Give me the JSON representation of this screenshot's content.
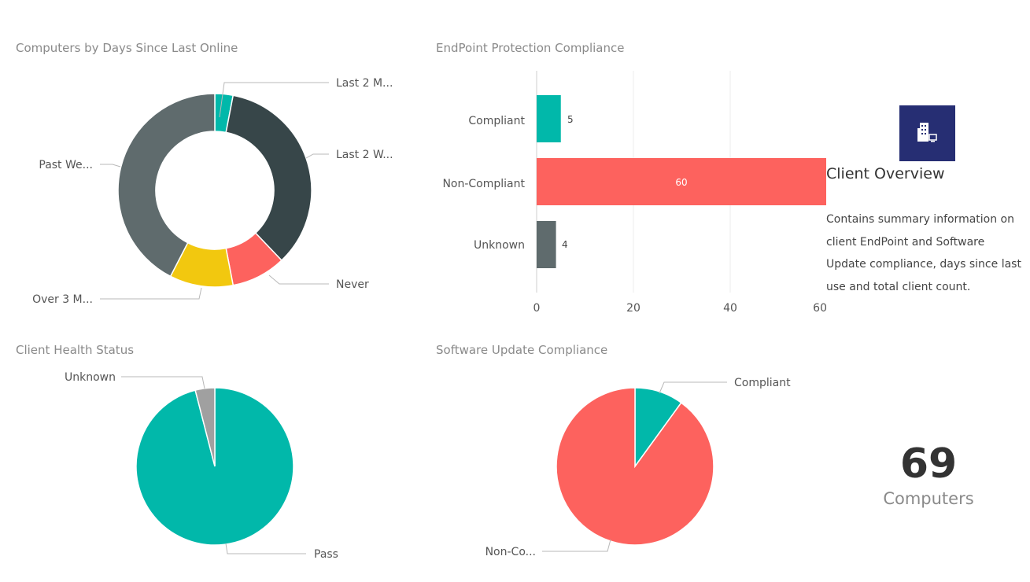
{
  "tiles": {
    "days_online": {
      "title": "Computers by Days Since Last Online"
    },
    "endpoint": {
      "title": "EndPoint Protection Compliance"
    },
    "health": {
      "title": "Client Health Status"
    },
    "software": {
      "title": "Software Update Compliance"
    }
  },
  "overview": {
    "title": "Client Overview",
    "description": "Contains summary information on client EndPoint and Software Update compliance, days since last use and total client count.",
    "icon": "building-computer-icon",
    "icon_bg": "#262e73"
  },
  "card": {
    "value": "69",
    "label": "Computers"
  },
  "chart_data": [
    {
      "type": "pie",
      "variant": "donut",
      "labels": [
        "Last 2 M...",
        "Last 2 W...",
        "Never",
        "Over 3 M...",
        "Past We..."
      ],
      "values": [
        2,
        23,
        6,
        7,
        28
      ],
      "colors": [
        "#01b8aa",
        "#374649",
        "#fd625e",
        "#f2c80f",
        "#5f6b6d"
      ]
    },
    {
      "type": "bar",
      "orientation": "horizontal",
      "categories": [
        "Compliant",
        "Non-Compliant",
        "Unknown"
      ],
      "values": [
        5,
        60,
        4
      ],
      "data_labels": [
        "5",
        "60",
        "4"
      ],
      "colors": [
        "#01b8aa",
        "#fd625e",
        "#5f6b6d"
      ],
      "xlim": [
        0,
        60
      ],
      "xticks": [
        "0",
        "20",
        "40",
        "60"
      ],
      "grid": true
    },
    {
      "type": "pie",
      "labels": [
        "Pass",
        "Unknown"
      ],
      "values": [
        96,
        4
      ],
      "colors": [
        "#01b8aa",
        "#a0a0a0"
      ]
    },
    {
      "type": "pie",
      "labels": [
        "Compliant",
        "Non-Co..."
      ],
      "values": [
        10,
        90
      ],
      "colors": [
        "#01b8aa",
        "#fd625e"
      ]
    }
  ]
}
